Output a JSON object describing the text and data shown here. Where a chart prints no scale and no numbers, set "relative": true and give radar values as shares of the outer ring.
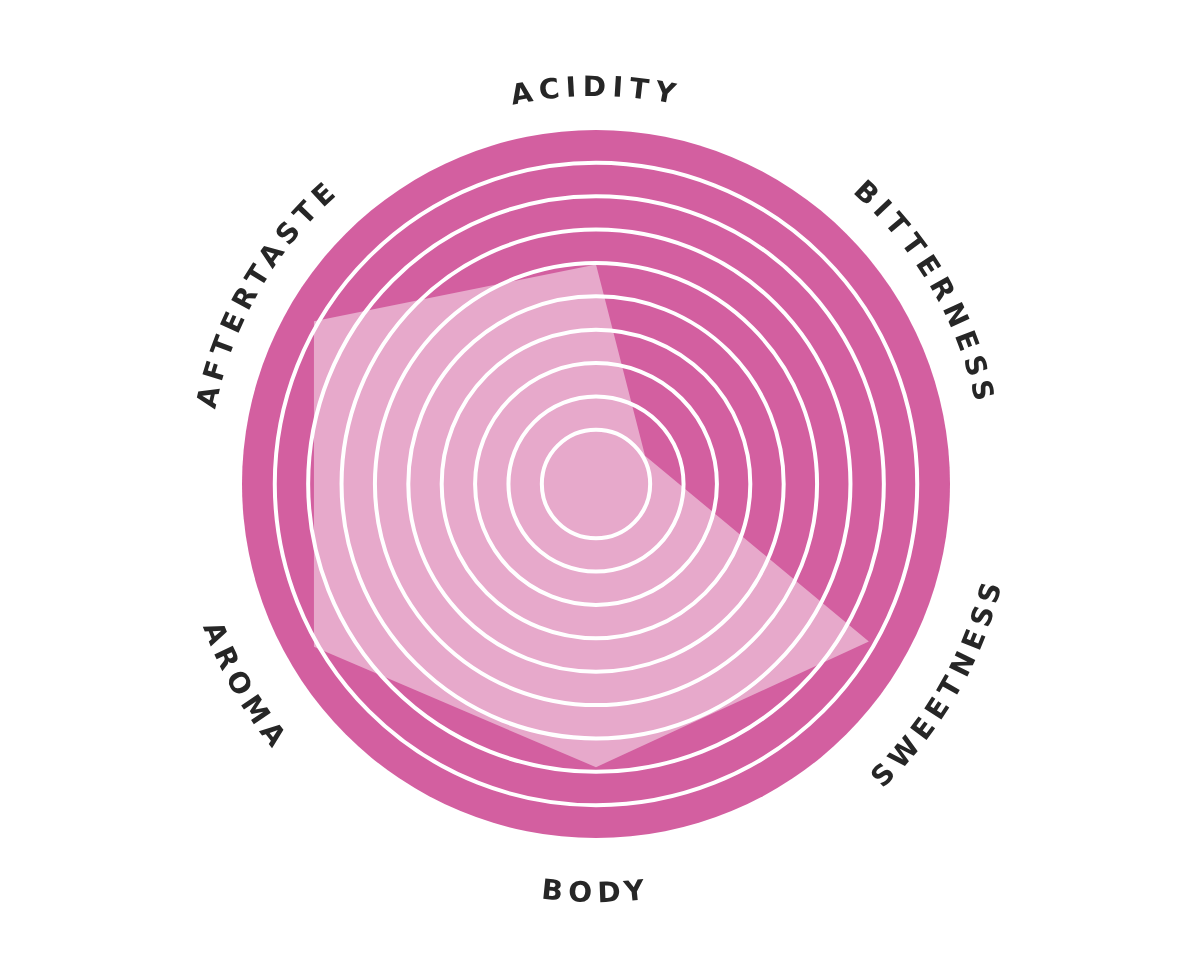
{
  "chart_data": {
    "type": "radar",
    "relative": true,
    "grid": true,
    "categories": [
      "ACIDITY",
      "BITTERNESS",
      "SWEETNESS",
      "BODY",
      "AROMA",
      "AFTERTASTE"
    ],
    "series": [
      {
        "color": "#e7a9cb",
        "values": [
          0.62,
          0.16,
          0.89,
          0.8,
          0.92,
          0.92
        ]
      }
    ]
  }
}
